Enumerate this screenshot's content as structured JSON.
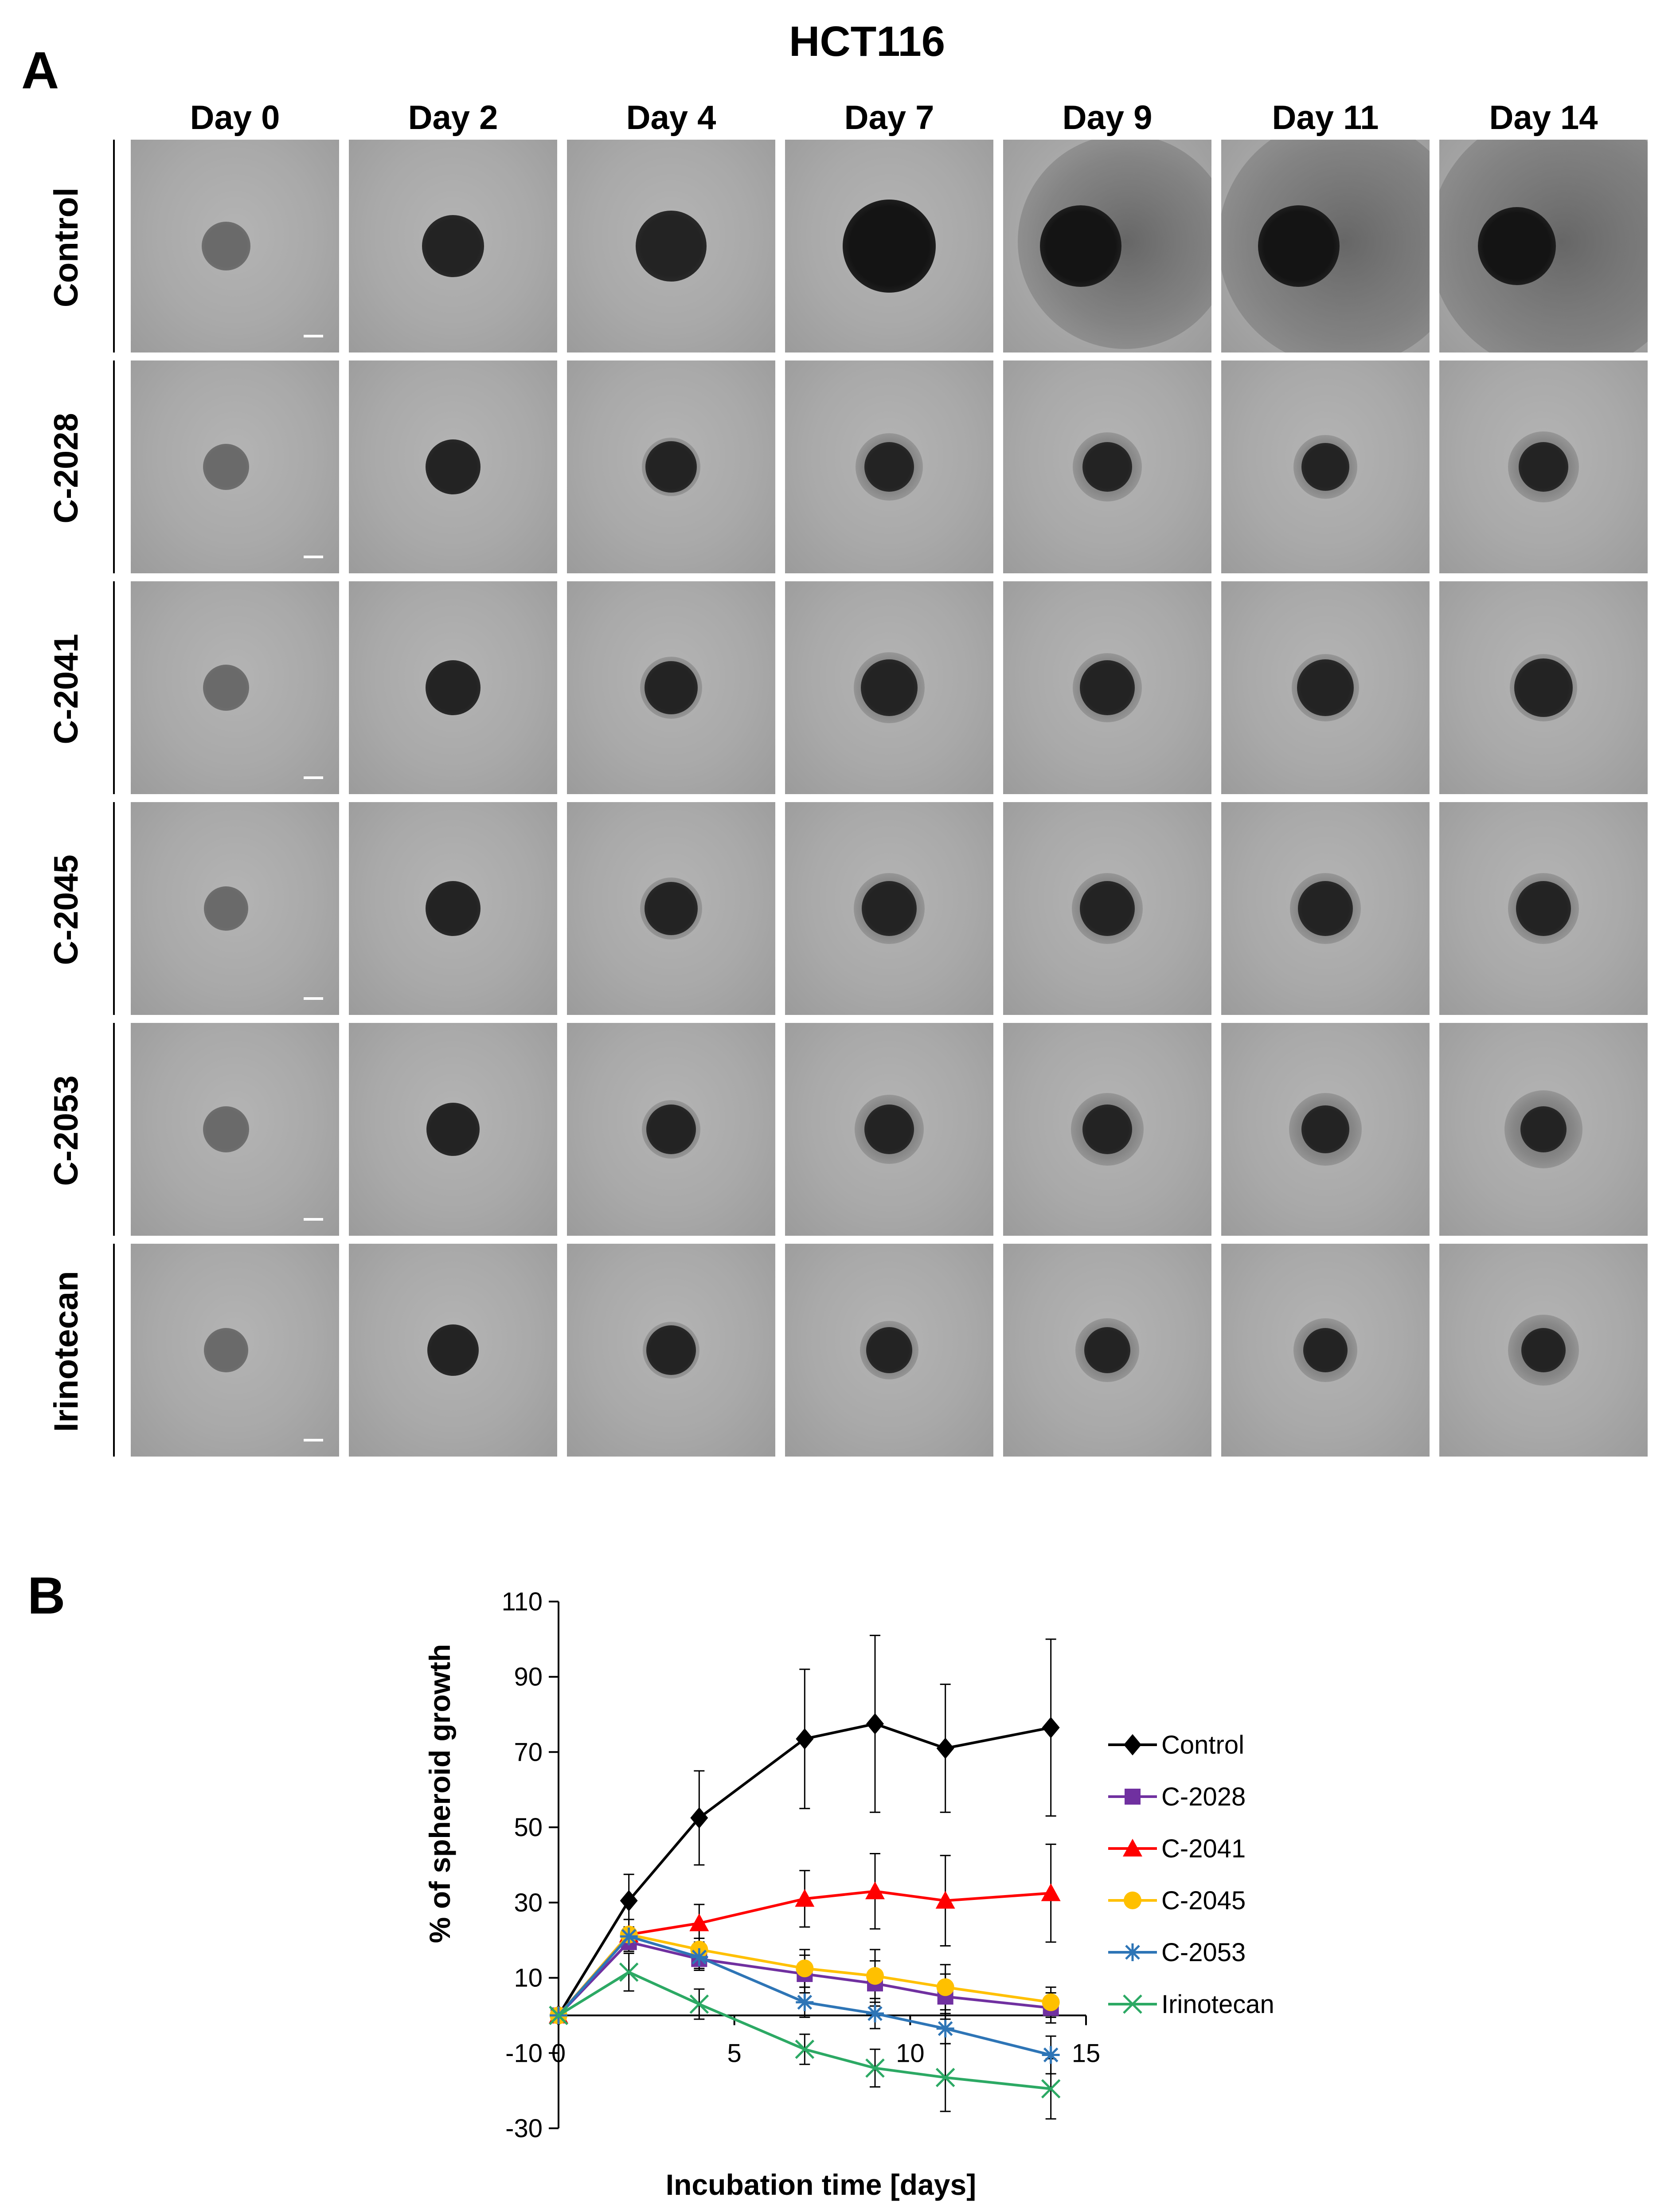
{
  "panel_a": {
    "letter": "A",
    "title": "HCT116",
    "days": [
      "Day 0",
      "Day 2",
      "Day 4",
      "Day 7",
      "Day 9",
      "Day 11",
      "Day 14"
    ],
    "rows": [
      "Control",
      "C-2028",
      "C-2041",
      "C-2045",
      "C-2053",
      "Irinotecan"
    ]
  },
  "panel_b": {
    "letter": "B"
  },
  "chart_data": {
    "type": "line",
    "xlabel": "Incubation time [days]",
    "ylabel": "% of spheroid growth",
    "xlim": [
      0,
      15
    ],
    "ylim": [
      -30,
      110
    ],
    "x_ticks": [
      "0",
      "5",
      "10",
      "15"
    ],
    "y_ticks": [
      "110",
      "90",
      "70",
      "50",
      "30",
      "10",
      "-10",
      "-30"
    ],
    "x": [
      0,
      2,
      4,
      7,
      9,
      11,
      14
    ],
    "legend_position": "right",
    "series": [
      {
        "name": "Control",
        "color": "#000000",
        "marker": "diamond",
        "values": [
          0,
          30.5,
          52.5,
          73.5,
          77.5,
          71,
          76.5
        ],
        "errors": [
          0,
          7,
          12.5,
          18.5,
          23.5,
          17,
          23.5
        ]
      },
      {
        "name": "C-2028",
        "color": "#7030a0",
        "marker": "square",
        "values": [
          0,
          19.5,
          15,
          11,
          8.5,
          5,
          2
        ],
        "errors": [
          0,
          2.5,
          3,
          5,
          6,
          6,
          4
        ]
      },
      {
        "name": "C-2041",
        "color": "#ff0000",
        "marker": "triangle",
        "values": [
          0,
          21.5,
          24.5,
          31,
          33,
          30.5,
          32.5
        ],
        "errors": [
          0,
          4,
          5,
          7.5,
          10,
          12,
          13
        ]
      },
      {
        "name": "C-2045",
        "color": "#ffc000",
        "marker": "circle",
        "values": [
          0,
          21.5,
          17.5,
          12.5,
          10.5,
          7.5,
          3.5
        ],
        "errors": [
          0,
          2,
          3,
          5,
          7,
          6,
          4
        ]
      },
      {
        "name": "C-2053",
        "color": "#2e75b6",
        "marker": "star",
        "values": [
          0,
          21,
          15.5,
          3.5,
          0.5,
          -3.5,
          -10.5
        ],
        "errors": [
          0,
          2,
          3,
          4,
          4,
          4,
          5
        ]
      },
      {
        "name": "Irinotecan",
        "color": "#2ca964",
        "marker": "x",
        "values": [
          0,
          11.5,
          3,
          -9,
          -14,
          -16.5,
          -19.5
        ],
        "errors": [
          0,
          5,
          4,
          4,
          5,
          9,
          8
        ]
      }
    ]
  }
}
